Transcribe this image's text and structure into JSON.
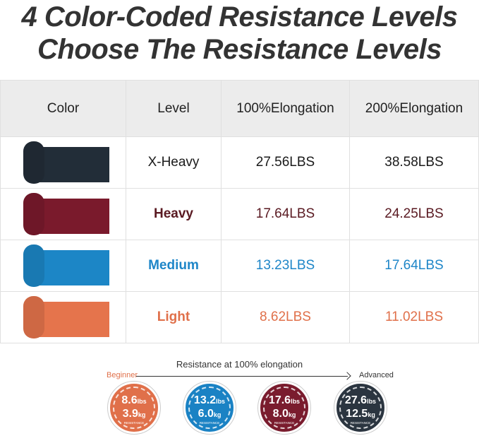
{
  "title": [
    "4 Color-Coded Resistance Levels",
    "Choose The Resistance Levels"
  ],
  "table": {
    "headers": [
      "Color",
      "Level",
      "100%Elongation",
      "200%Elongation"
    ],
    "rows": [
      {
        "level": "X-Heavy",
        "e100": "27.56LBS",
        "e200": "38.58LBS",
        "color": "#222d38",
        "text_color": "#1a1a1a"
      },
      {
        "level": "Heavy",
        "e100": "17.64LBS",
        "e200": "24.25LBS",
        "color": "#7a1a2c",
        "text_color": "#5a1a22"
      },
      {
        "level": "Medium",
        "e100": "13.23LBS",
        "e200": "17.64LBS",
        "color": "#1c86c6",
        "text_color": "#1e86c8"
      },
      {
        "level": "Light",
        "e100": "8.62LBS",
        "e200": "11.02LBS",
        "color": "#e5744c",
        "text_color": "#e0704a"
      }
    ]
  },
  "scale": {
    "title": "Resistance at 100% elongation",
    "start": "Beginner",
    "end": "Advanced",
    "circles": [
      {
        "lbs": "8.6",
        "kg": "3.9",
        "color": "#e0704a"
      },
      {
        "lbs": "13.2",
        "kg": "6.0",
        "color": "#1a82c4"
      },
      {
        "lbs": "17.6",
        "kg": "8.0",
        "color": "#7a1c2e"
      },
      {
        "lbs": "27.6",
        "kg": "12.5",
        "color": "#2b3540"
      }
    ],
    "lbs_unit": "lbs",
    "kg_unit": "kg",
    "caption": "RESISTANCE"
  }
}
